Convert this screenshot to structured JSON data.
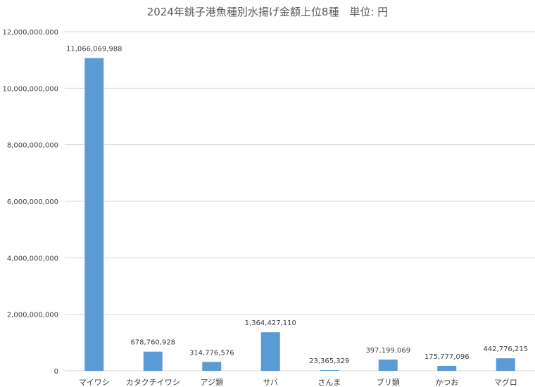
{
  "chart_data": {
    "type": "bar",
    "title": "2024年銚子港魚種別水揚げ金額上位8種　単位: 円",
    "categories": [
      "マイワシ",
      "カタクチイワシ",
      "アジ類",
      "サバ",
      "さんま",
      "ブリ類",
      "かつお",
      "マグロ"
    ],
    "values": [
      11066069988,
      678760928,
      314776576,
      1364427110,
      23365329,
      397199069,
      175777096,
      442776215
    ],
    "value_labels": [
      "11,066,069,988",
      "678,760,928",
      "314,776,576",
      "1,364,427,110",
      "23,365,329",
      "397,199,069",
      "175,777,096",
      "442,776,215"
    ],
    "y_ticks": [
      0,
      2000000000,
      4000000000,
      6000000000,
      8000000000,
      10000000000,
      12000000000
    ],
    "y_tick_labels": [
      "0",
      "2,000,000,000",
      "4,000,000,000",
      "6,000,000,000",
      "8,000,000,000",
      "10,000,000,000",
      "12,000,000,000"
    ],
    "ylim": [
      0,
      12000000000
    ],
    "grid": true,
    "legend": "none",
    "bar_color": "#5b9bd5",
    "gridline_color": "#d9d9d9",
    "text_color": "#404040",
    "title_color": "#595959"
  }
}
